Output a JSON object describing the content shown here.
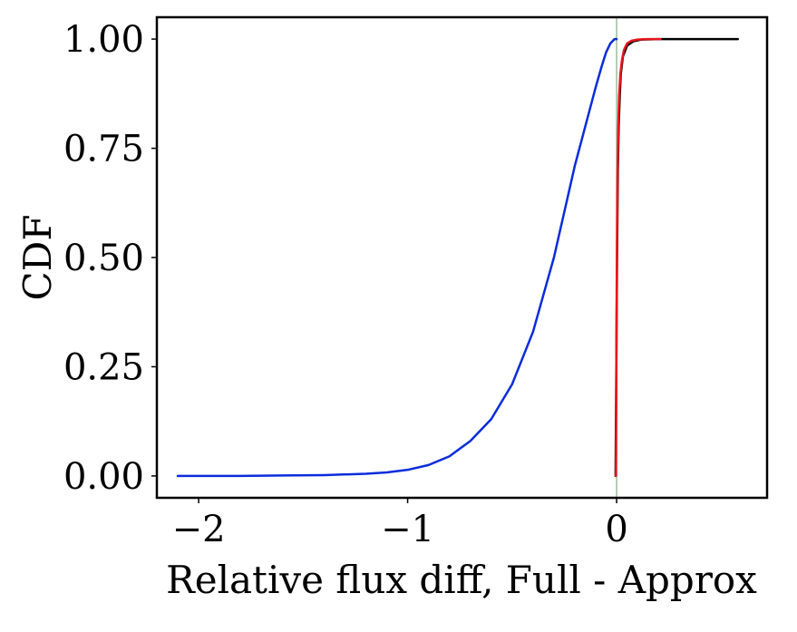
{
  "chart_data": {
    "type": "line",
    "title": "",
    "xlabel": "Relative flux diff, Full - Approx",
    "ylabel": "CDF",
    "xlim": [
      -2.2,
      0.72
    ],
    "ylim": [
      -0.05,
      1.05
    ],
    "grid": false,
    "legend": "none",
    "x_ticks": [
      {
        "value": -2,
        "label": "−2"
      },
      {
        "value": -1,
        "label": "−1"
      },
      {
        "value": 0,
        "label": "0"
      }
    ],
    "y_ticks": [
      {
        "value": 0.0,
        "label": "0.00"
      },
      {
        "value": 0.25,
        "label": "0.25"
      },
      {
        "value": 0.5,
        "label": "0.50"
      },
      {
        "value": 0.75,
        "label": "0.75"
      },
      {
        "value": 1.0,
        "label": "1.00"
      }
    ],
    "reference_line": {
      "x": 0,
      "color": "#9dbd9d"
    },
    "series": [
      {
        "color": "#0a2cdc",
        "x": [
          -2.1,
          -1.8,
          -1.6,
          -1.4,
          -1.2,
          -1.1,
          -1.0,
          -0.9,
          -0.8,
          -0.7,
          -0.6,
          -0.5,
          -0.4,
          -0.3,
          -0.2,
          -0.15,
          -0.1,
          -0.07,
          -0.05,
          -0.03,
          -0.01,
          0.0
        ],
        "y": [
          0.0,
          0.0,
          0.001,
          0.002,
          0.005,
          0.008,
          0.014,
          0.025,
          0.045,
          0.08,
          0.13,
          0.21,
          0.33,
          0.5,
          0.71,
          0.8,
          0.89,
          0.94,
          0.97,
          0.99,
          1.0,
          1.0
        ]
      },
      {
        "color": "#000000",
        "x": [
          -0.005,
          0.0,
          0.003,
          0.006,
          0.01,
          0.015,
          0.02,
          0.03,
          0.05,
          0.08,
          0.12,
          0.2,
          0.4,
          0.58
        ],
        "y": [
          0.0,
          0.35,
          0.55,
          0.7,
          0.8,
          0.87,
          0.92,
          0.96,
          0.985,
          0.995,
          0.999,
          1.0,
          1.0,
          1.0
        ]
      },
      {
        "color": "#e8161e",
        "x": [
          -0.003,
          0.0,
          0.002,
          0.004,
          0.008,
          0.012,
          0.018,
          0.025,
          0.035,
          0.05,
          0.07,
          0.1,
          0.15,
          0.21
        ],
        "y": [
          0.0,
          0.39,
          0.55,
          0.68,
          0.8,
          0.87,
          0.92,
          0.95,
          0.975,
          0.99,
          0.996,
          0.999,
          1.0,
          1.0
        ]
      }
    ]
  }
}
